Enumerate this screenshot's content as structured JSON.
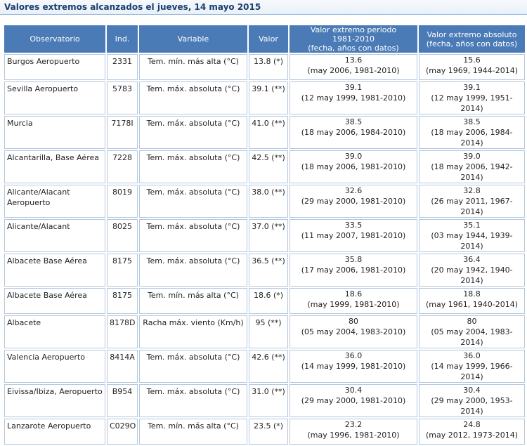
{
  "page": {
    "title": "Valores extremos alcanzados el jueves, 14 mayo 2015"
  },
  "table": {
    "columns": [
      "Observatorio",
      "Ind.",
      "Variable",
      "Valor",
      "Valor extremo periodo\n1981-2010\n(fecha, años con datos)",
      "Valor extremo absoluto\n(fecha, años con datos)"
    ],
    "rows": [
      {
        "observatorio": "Burgos Aeropuerto",
        "ind": "2331",
        "variable": "Tem. mín. más alta (°C)",
        "valor": "13.8 (*)",
        "periodo_valor": "13.6",
        "periodo_detalle": "(may 2006, 1981-2010)",
        "absoluto_valor": "15.6",
        "absoluto_detalle": "(may 1969, 1944-2014)"
      },
      {
        "observatorio": "Sevilla Aeropuerto",
        "ind": "5783",
        "variable": "Tem. máx. absoluta (°C)",
        "valor": "39.1 (**)",
        "periodo_valor": "39.1",
        "periodo_detalle": "(12 may 1999, 1981-2010)",
        "absoluto_valor": "39.1",
        "absoluto_detalle": "(12 may 1999, 1951-2014)"
      },
      {
        "observatorio": "Murcia",
        "ind": "7178I",
        "variable": "Tem. máx. absoluta (°C)",
        "valor": "41.0 (**)",
        "periodo_valor": "38.5",
        "periodo_detalle": "(18 may 2006, 1984-2010)",
        "absoluto_valor": "38.5",
        "absoluto_detalle": "(18 may 2006, 1984-2014)"
      },
      {
        "observatorio": "Alcantarilla, Base Aérea",
        "ind": "7228",
        "variable": "Tem. máx. absoluta (°C)",
        "valor": "42.5 (**)",
        "periodo_valor": "39.0",
        "periodo_detalle": "(18 may 2006, 1981-2010)",
        "absoluto_valor": "39.0",
        "absoluto_detalle": "(18 may 2006, 1942-2014)"
      },
      {
        "observatorio": "Alicante/Alacant Aeropuerto",
        "ind": "8019",
        "variable": "Tem. máx. absoluta (°C)",
        "valor": "38.0 (**)",
        "periodo_valor": "32.6",
        "periodo_detalle": "(29 may 2000, 1981-2010)",
        "absoluto_valor": "32.8",
        "absoluto_detalle": "(26 may 2011, 1967-2014)"
      },
      {
        "observatorio": "Alicante/Alacant",
        "ind": "8025",
        "variable": "Tem. máx. absoluta (°C)",
        "valor": "37.0 (**)",
        "periodo_valor": "33.5",
        "periodo_detalle": "(11 may 2007, 1981-2010)",
        "absoluto_valor": "35.1",
        "absoluto_detalle": "(03 may 1944, 1939-2014)"
      },
      {
        "observatorio": "Albacete Base Aérea",
        "ind": "8175",
        "variable": "Tem. máx. absoluta (°C)",
        "valor": "36.5 (**)",
        "periodo_valor": "35.8",
        "periodo_detalle": "(17 may 2006, 1981-2010)",
        "absoluto_valor": "36.4",
        "absoluto_detalle": "(20 may 1942, 1940-2014)"
      },
      {
        "observatorio": "Albacete Base Aérea",
        "ind": "8175",
        "variable": "Tem. mín. más alta (°C)",
        "valor": "18.6 (*)",
        "periodo_valor": "18.6",
        "periodo_detalle": "(may 1999, 1981-2010)",
        "absoluto_valor": "18.8",
        "absoluto_detalle": "(may 1961, 1940-2014)"
      },
      {
        "observatorio": "Albacete",
        "ind": "8178D",
        "variable": "Racha máx. viento (Km/h)",
        "valor": "95 (**)",
        "periodo_valor": "80",
        "periodo_detalle": "(05 may 2004, 1983-2010)",
        "absoluto_valor": "80",
        "absoluto_detalle": "(05 may 2004, 1983-2014)"
      },
      {
        "observatorio": "Valencia Aeropuerto",
        "ind": "8414A",
        "variable": "Tem. máx. absoluta (°C)",
        "valor": "42.6 (**)",
        "periodo_valor": "36.0",
        "periodo_detalle": "(14 may 1999, 1981-2010)",
        "absoluto_valor": "36.0",
        "absoluto_detalle": "(14 may 1999, 1966-2014)"
      },
      {
        "observatorio": "Eivissa/Ibiza, Aeropuerto",
        "ind": "B954",
        "variable": "Tem. máx. absoluta (°C)",
        "valor": "31.0 (**)",
        "periodo_valor": "30.4",
        "periodo_detalle": "(29 may 2000, 1981-2010)",
        "absoluto_valor": "30.4",
        "absoluto_detalle": "(29 may 2000, 1953-2014)"
      },
      {
        "observatorio": "Lanzarote Aeropuerto",
        "ind": "C029O",
        "variable": "Tem. mín. más alta (°C)",
        "valor": "23.5 (*)",
        "periodo_valor": "23.2",
        "periodo_detalle": "(may 1996, 1981-2010)",
        "absoluto_valor": "24.8",
        "absoluto_detalle": "(may 2012, 1973-2014)"
      }
    ]
  }
}
